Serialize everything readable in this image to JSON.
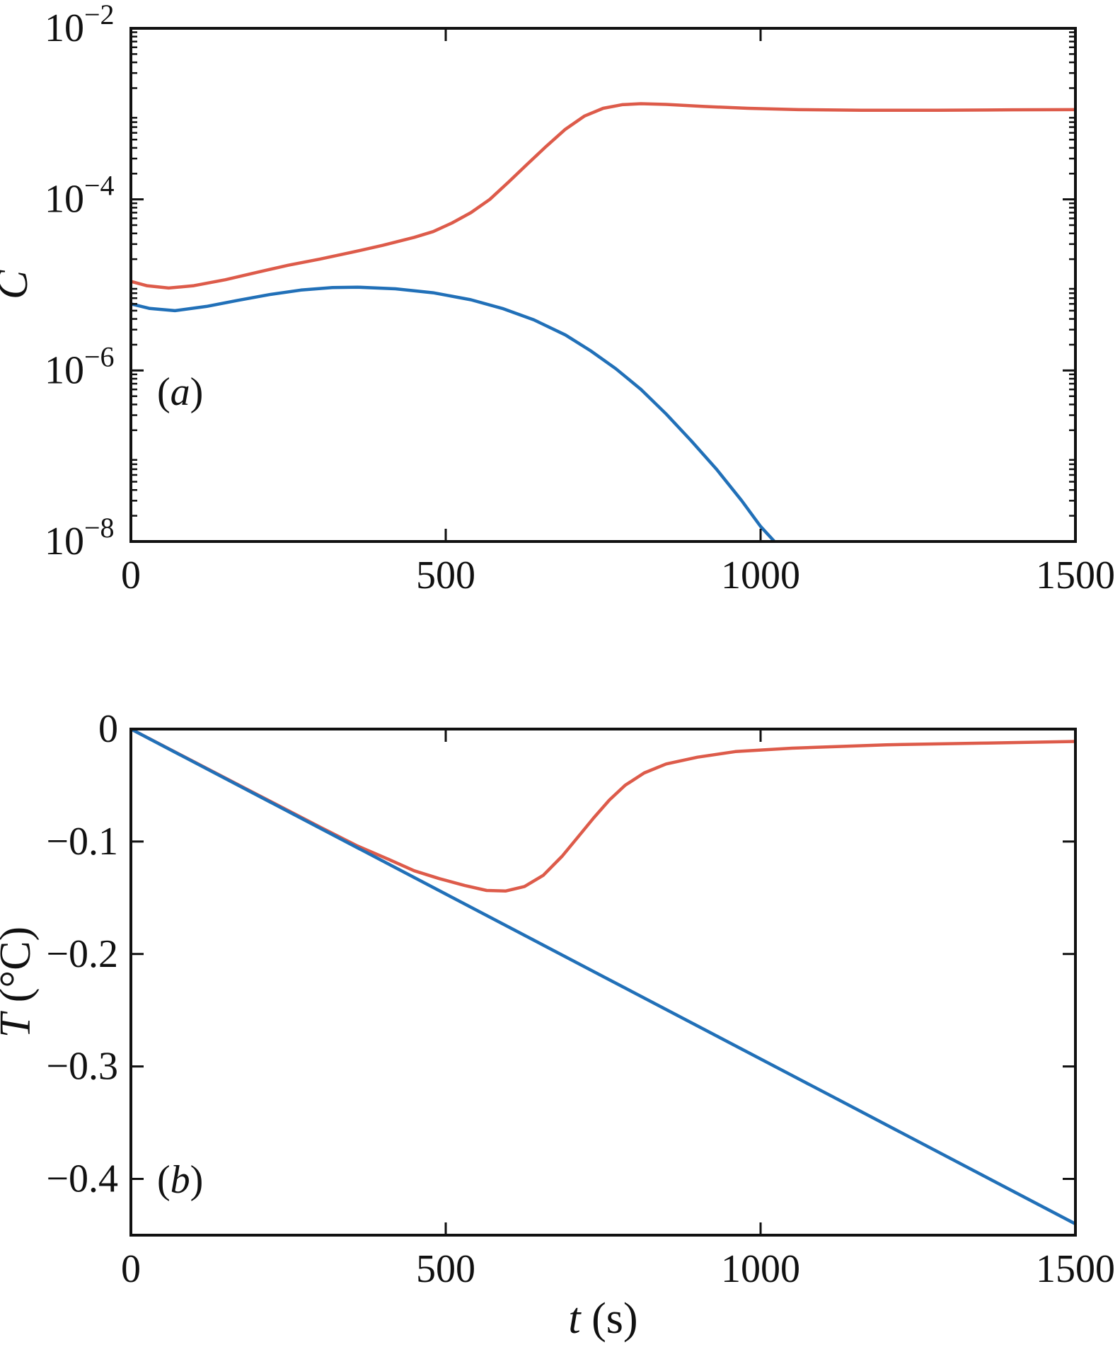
{
  "figure": {
    "background": "#ffffff",
    "axis_color": "#111111"
  },
  "chart_data": [
    {
      "type": "line",
      "panel": "a",
      "title": "",
      "annotation": "(a)",
      "annotation_parts": [
        {
          "text": "(",
          "italic": false
        },
        {
          "text": "a",
          "italic": true
        },
        {
          "text": ")",
          "italic": false
        }
      ],
      "xlabel": "",
      "ylabel": "C",
      "ylabel_parts": [
        {
          "text": "C",
          "italic": true
        }
      ],
      "xlim": [
        0,
        1500
      ],
      "yscale": "log",
      "ylim_exp": [
        -8,
        -2
      ],
      "grid": false,
      "legend": false,
      "x_ticks": [
        {
          "value": 0,
          "label": "0"
        },
        {
          "value": 500,
          "label": "500"
        },
        {
          "value": 1000,
          "label": "1000"
        },
        {
          "value": 1500,
          "label": "1500"
        }
      ],
      "y_ticks": [
        {
          "value": 0.01,
          "label_base": "10",
          "label_exp": "−2"
        },
        {
          "value": 0.0001,
          "label_base": "10",
          "label_exp": "−4"
        },
        {
          "value": 1e-06,
          "label_base": "10",
          "label_exp": "−6"
        },
        {
          "value": 1e-08,
          "label_base": "10",
          "label_exp": "−8"
        }
      ],
      "series": [
        {
          "name": "red-curve",
          "color": "#dd5b4a",
          "points": [
            [
              0,
              1.1e-05
            ],
            [
              25,
              9.8e-06
            ],
            [
              60,
              9.2e-06
            ],
            [
              100,
              9.8e-06
            ],
            [
              150,
              1.15e-05
            ],
            [
              200,
              1.4e-05
            ],
            [
              250,
              1.7e-05
            ],
            [
              300,
              2e-05
            ],
            [
              350,
              2.4e-05
            ],
            [
              400,
              2.9e-05
            ],
            [
              450,
              3.6e-05
            ],
            [
              480,
              4.2e-05
            ],
            [
              510,
              5.3e-05
            ],
            [
              540,
              7e-05
            ],
            [
              570,
              0.0001
            ],
            [
              600,
              0.00016
            ],
            [
              630,
              0.00026
            ],
            [
              660,
              0.00042
            ],
            [
              690,
              0.00066
            ],
            [
              720,
              0.00094
            ],
            [
              750,
              0.00116
            ],
            [
              780,
              0.00128
            ],
            [
              810,
              0.001315
            ],
            [
              850,
              0.00129
            ],
            [
              910,
              0.00122
            ],
            [
              980,
              0.00116
            ],
            [
              1060,
              0.00112
            ],
            [
              1160,
              0.0011
            ],
            [
              1280,
              0.0011
            ],
            [
              1400,
              0.001115
            ],
            [
              1500,
              0.00112
            ]
          ]
        },
        {
          "name": "blue-curve",
          "color": "#2170b8",
          "points": [
            [
              0,
              6e-06
            ],
            [
              30,
              5.3e-06
            ],
            [
              70,
              5e-06
            ],
            [
              120,
              5.6e-06
            ],
            [
              170,
              6.6e-06
            ],
            [
              220,
              7.7e-06
            ],
            [
              270,
              8.7e-06
            ],
            [
              320,
              9.3e-06
            ],
            [
              360,
              9.4e-06
            ],
            [
              420,
              9e-06
            ],
            [
              480,
              8.1e-06
            ],
            [
              540,
              6.7e-06
            ],
            [
              590,
              5.3e-06
            ],
            [
              640,
              3.9e-06
            ],
            [
              690,
              2.6e-06
            ],
            [
              730,
              1.7e-06
            ],
            [
              770,
              1.05e-06
            ],
            [
              810,
              6e-07
            ],
            [
              850,
              3.1e-07
            ],
            [
              890,
              1.5e-07
            ],
            [
              930,
              7e-08
            ],
            [
              970,
              3e-08
            ],
            [
              1000,
              1.5e-08
            ],
            [
              1022,
              1e-08
            ]
          ]
        }
      ]
    },
    {
      "type": "line",
      "panel": "b",
      "title": "",
      "annotation": "(b)",
      "annotation_parts": [
        {
          "text": "(",
          "italic": false
        },
        {
          "text": "b",
          "italic": true
        },
        {
          "text": ")",
          "italic": false
        }
      ],
      "xlabel": "t (s)",
      "xlabel_parts": [
        {
          "text": "t",
          "italic": true
        },
        {
          "text": " (s)",
          "italic": false
        }
      ],
      "ylabel": "T (°C)",
      "ylabel_parts": [
        {
          "text": "T",
          "italic": true
        },
        {
          "text": " (°C)",
          "italic": false
        }
      ],
      "xlim": [
        0,
        1500
      ],
      "yscale": "linear",
      "ylim": [
        -0.45,
        0
      ],
      "grid": false,
      "legend": false,
      "x_ticks": [
        {
          "value": 0,
          "label": "0"
        },
        {
          "value": 500,
          "label": "500"
        },
        {
          "value": 1000,
          "label": "1000"
        },
        {
          "value": 1500,
          "label": "1500"
        }
      ],
      "y_ticks": [
        {
          "value": 0,
          "label": "0"
        },
        {
          "value": -0.1,
          "label": "−0.1"
        },
        {
          "value": -0.2,
          "label": "−0.2"
        },
        {
          "value": -0.3,
          "label": "−0.3"
        },
        {
          "value": -0.4,
          "label": "−0.4"
        }
      ],
      "series": [
        {
          "name": "red-curve",
          "color": "#dd5b4a",
          "points": [
            [
              0,
              0
            ],
            [
              100,
              -0.029
            ],
            [
              200,
              -0.058
            ],
            [
              300,
              -0.087
            ],
            [
              360,
              -0.104
            ],
            [
              410,
              -0.116
            ],
            [
              450,
              -0.126
            ],
            [
              490,
              -0.133
            ],
            [
              530,
              -0.139
            ],
            [
              565,
              -0.1435
            ],
            [
              595,
              -0.144
            ],
            [
              625,
              -0.14
            ],
            [
              655,
              -0.13
            ],
            [
              685,
              -0.113
            ],
            [
              710,
              -0.096
            ],
            [
              735,
              -0.079
            ],
            [
              760,
              -0.063
            ],
            [
              785,
              -0.05
            ],
            [
              815,
              -0.039
            ],
            [
              850,
              -0.031
            ],
            [
              900,
              -0.025
            ],
            [
              960,
              -0.02
            ],
            [
              1050,
              -0.017
            ],
            [
              1200,
              -0.014
            ],
            [
              1350,
              -0.0125
            ],
            [
              1500,
              -0.011
            ]
          ]
        },
        {
          "name": "blue-curve",
          "color": "#2170b8",
          "points": [
            [
              0,
              0
            ],
            [
              375,
              -0.11
            ],
            [
              750,
              -0.22
            ],
            [
              1125,
              -0.33
            ],
            [
              1500,
              -0.44
            ]
          ]
        }
      ]
    }
  ]
}
